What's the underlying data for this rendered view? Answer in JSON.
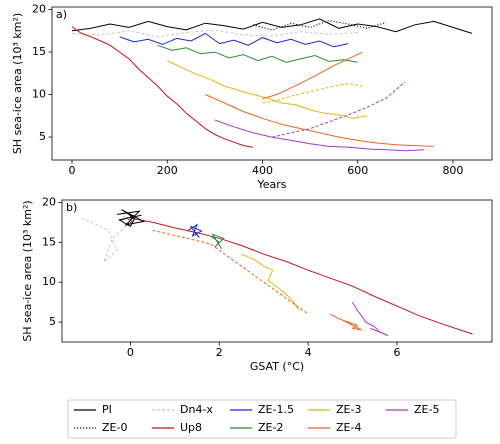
{
  "chart_data": [
    {
      "type": "line",
      "panel_label": "a)",
      "xlabel": "Years",
      "ylabel": "SH sea-ice area (10³ km²)",
      "xlim": [
        -42,
        882
      ],
      "ylim": [
        2.3,
        20.3
      ],
      "xticks": [
        0,
        200,
        400,
        600,
        800
      ],
      "yticks": [
        5,
        10,
        15,
        20
      ],
      "series": [
        {
          "name": "PI",
          "color": "#000000",
          "x": [
            0,
            40,
            80,
            120,
            160,
            200,
            240,
            280,
            320,
            360,
            400,
            440,
            480,
            520,
            560,
            600,
            640,
            680,
            720,
            760,
            800,
            840
          ],
          "values": [
            17.5,
            17.8,
            18.3,
            17.9,
            18.6,
            18.0,
            17.6,
            18.4,
            18.1,
            17.7,
            18.5,
            17.9,
            18.2,
            18.9,
            17.8,
            18.3,
            18.0,
            17.4,
            18.2,
            18.6,
            17.9,
            17.2
          ]
        },
        {
          "name": "ZE-0",
          "color": "#000000",
          "dash": "dotted",
          "x": [
            380,
            420,
            460,
            500,
            540,
            580,
            620,
            660
          ],
          "values": [
            18.2,
            17.6,
            18.4,
            17.9,
            18.7,
            18.3,
            17.8,
            18.5
          ]
        },
        {
          "name": "Dn4-x",
          "color": "#c8c8c8",
          "dash": "dashed",
          "x": [
            0,
            60,
            120,
            180,
            240,
            300,
            360,
            420,
            480,
            540,
            600
          ],
          "values": [
            17.2,
            17.0,
            17.5,
            16.8,
            17.3,
            17.6,
            17.0,
            16.9,
            17.4,
            17.1,
            17.3
          ]
        },
        {
          "name": "Up8",
          "color": "#c81414",
          "x": [
            0,
            20,
            40,
            60,
            80,
            100,
            120,
            140,
            160,
            180,
            200,
            220,
            240,
            260,
            280,
            300,
            320,
            340,
            360,
            380
          ],
          "values": [
            18.0,
            17.2,
            16.8,
            16.3,
            15.8,
            15.0,
            14.2,
            13.0,
            12.0,
            11.0,
            9.8,
            8.9,
            7.8,
            6.9,
            6.0,
            5.3,
            4.8,
            4.4,
            4.0,
            3.8
          ]
        },
        {
          "name": "ZE-1.5",
          "color": "#1428d2",
          "x": [
            100,
            130,
            160,
            190,
            220,
            250,
            280,
            310,
            340,
            370,
            400,
            430,
            460,
            490,
            520,
            550,
            580
          ],
          "values": [
            16.8,
            16.2,
            16.5,
            15.9,
            16.6,
            16.3,
            17.2,
            16.0,
            16.4,
            15.8,
            16.7,
            16.1,
            16.5,
            15.9,
            16.3,
            15.6,
            16.0
          ]
        },
        {
          "name": "ZE-2",
          "color": "#2a8a3a",
          "x": [
            180,
            210,
            240,
            270,
            300,
            330,
            360,
            390,
            420,
            450,
            480,
            510,
            540,
            570,
            600
          ],
          "values": [
            15.8,
            15.2,
            15.5,
            14.8,
            15.0,
            14.3,
            14.7,
            14.0,
            14.5,
            13.8,
            14.2,
            14.6,
            13.9,
            14.1,
            13.8
          ]
        },
        {
          "name": "ZE-3",
          "color": "#e6b414",
          "x": [
            200,
            230,
            260,
            290,
            320,
            350,
            380,
            410,
            440,
            470,
            500,
            530,
            560,
            590,
            620
          ],
          "values": [
            14.0,
            13.2,
            12.4,
            11.8,
            11.0,
            10.5,
            10.0,
            9.6,
            9.0,
            8.8,
            8.2,
            7.8,
            7.6,
            7.2,
            7.5
          ]
        },
        {
          "name": "ZE-4",
          "color": "#f0641e",
          "x": [
            280,
            320,
            360,
            400,
            440,
            480,
            520,
            560,
            600,
            640,
            680,
            720,
            760
          ],
          "values": [
            10.0,
            9.0,
            8.0,
            7.2,
            6.5,
            6.0,
            5.5,
            5.0,
            4.6,
            4.3,
            4.1,
            4.0,
            3.9
          ]
        },
        {
          "name": "ZE-5",
          "color": "#a03cc8",
          "x": [
            300,
            340,
            380,
            420,
            460,
            500,
            540,
            580,
            620,
            660,
            700,
            740
          ],
          "values": [
            7.0,
            6.2,
            5.5,
            5.0,
            4.6,
            4.2,
            3.9,
            3.8,
            3.6,
            3.5,
            3.4,
            3.5
          ]
        },
        {
          "color": "#e6b414",
          "dash": "dashed",
          "x": [
            400,
            430,
            460,
            490,
            520,
            550,
            580,
            610
          ],
          "values": [
            9.0,
            9.3,
            9.8,
            10.2,
            10.6,
            11.0,
            11.3,
            11.0
          ]
        },
        {
          "color": "#f0641e",
          "x": [
            400,
            430,
            460,
            490,
            520,
            550,
            580,
            610
          ],
          "values": [
            9.5,
            10.0,
            10.8,
            11.6,
            12.5,
            13.4,
            14.2,
            15.0
          ]
        },
        {
          "color": "#a03cc8",
          "dash": "dashed",
          "x": [
            420,
            460,
            500,
            540,
            580,
            620,
            660,
            700
          ],
          "values": [
            5.0,
            5.5,
            6.0,
            6.8,
            7.6,
            8.5,
            9.6,
            11.5
          ]
        }
      ]
    },
    {
      "type": "line",
      "panel_label": "b)",
      "xlabel": "GSAT (°C)",
      "ylabel": "SH sea-ice area (10³ km²)",
      "xlim": [
        -1.54,
        8.14
      ],
      "ylim": [
        2.5,
        20.3
      ],
      "xticks": [
        0,
        2,
        4,
        6
      ],
      "yticks": [
        5,
        10,
        15,
        20
      ],
      "series": [
        {
          "color": "#c8c8c8",
          "dash": "dashed",
          "x": [
            -1.1,
            -0.8,
            -0.5,
            -0.3,
            -0.6,
            -0.4,
            0.0
          ],
          "values": [
            18.0,
            17.3,
            16.5,
            14.0,
            12.5,
            15.5,
            17.5
          ]
        },
        {
          "color": "#c81414",
          "x": [
            0.0,
            0.5,
            1.0,
            1.5,
            2.0,
            2.5,
            3.0,
            3.5,
            4.0,
            4.5,
            5.0,
            5.5,
            6.0,
            6.5,
            7.0,
            7.7
          ],
          "values": [
            18.0,
            17.5,
            16.8,
            16.2,
            15.5,
            14.6,
            13.5,
            12.6,
            11.5,
            10.5,
            9.5,
            8.2,
            7.0,
            5.8,
            4.8,
            3.5
          ]
        },
        {
          "color": "#1428d2",
          "x": [
            1.3,
            1.5,
            1.4,
            1.6,
            1.35,
            1.55,
            1.45
          ],
          "values": [
            16.5,
            17.2,
            15.8,
            16.4,
            17.0,
            15.6,
            16.2
          ]
        },
        {
          "color": "#2a8a3a",
          "x": [
            1.8,
            2.0,
            1.9,
            2.1,
            1.85,
            2.05
          ],
          "values": [
            15.8,
            15.0,
            14.4,
            15.5,
            16.0,
            14.2
          ]
        },
        {
          "color": "#e6b414",
          "x": [
            2.5,
            2.8,
            3.0,
            3.2,
            3.1,
            3.4,
            3.6,
            3.8,
            3.7
          ],
          "values": [
            13.5,
            12.8,
            12.0,
            11.5,
            10.2,
            9.0,
            8.0,
            6.5,
            7.2
          ]
        },
        {
          "color": "#f0641e",
          "dash": "dashed",
          "x": [
            0.5,
            1.2,
            1.8,
            2.5,
            3.0,
            3.5,
            4.0
          ],
          "values": [
            16.5,
            15.6,
            14.8,
            12.0,
            10.0,
            8.0,
            6.0
          ]
        },
        {
          "color": "#f0641e",
          "x": [
            4.5,
            4.7,
            4.9,
            5.1,
            5.0,
            5.2,
            4.8
          ],
          "values": [
            6.0,
            5.4,
            5.0,
            4.6,
            4.2,
            4.0,
            5.2
          ]
        },
        {
          "color": "#a03cc8",
          "x": [
            5.0,
            5.1,
            5.2,
            5.3,
            5.5,
            5.6,
            5.8,
            5.4
          ],
          "values": [
            7.5,
            6.5,
            5.8,
            5.0,
            4.4,
            3.8,
            3.3,
            4.2
          ]
        },
        {
          "color": "#000000",
          "x": [
            -0.3,
            0.2,
            -0.1,
            0.3,
            -0.2,
            0.1,
            0.0,
            -0.25,
            0.25
          ],
          "values": [
            18.5,
            18.9,
            17.2,
            17.6,
            19.1,
            18.0,
            17.0,
            17.8,
            18.4
          ]
        },
        {
          "color": "#000000",
          "dash": "dotted",
          "x": [
            -0.2,
            0.1,
            -0.1,
            0.05,
            -0.15
          ],
          "values": [
            17.8,
            18.4,
            17.1,
            17.6,
            18.2
          ]
        }
      ]
    }
  ]
}
